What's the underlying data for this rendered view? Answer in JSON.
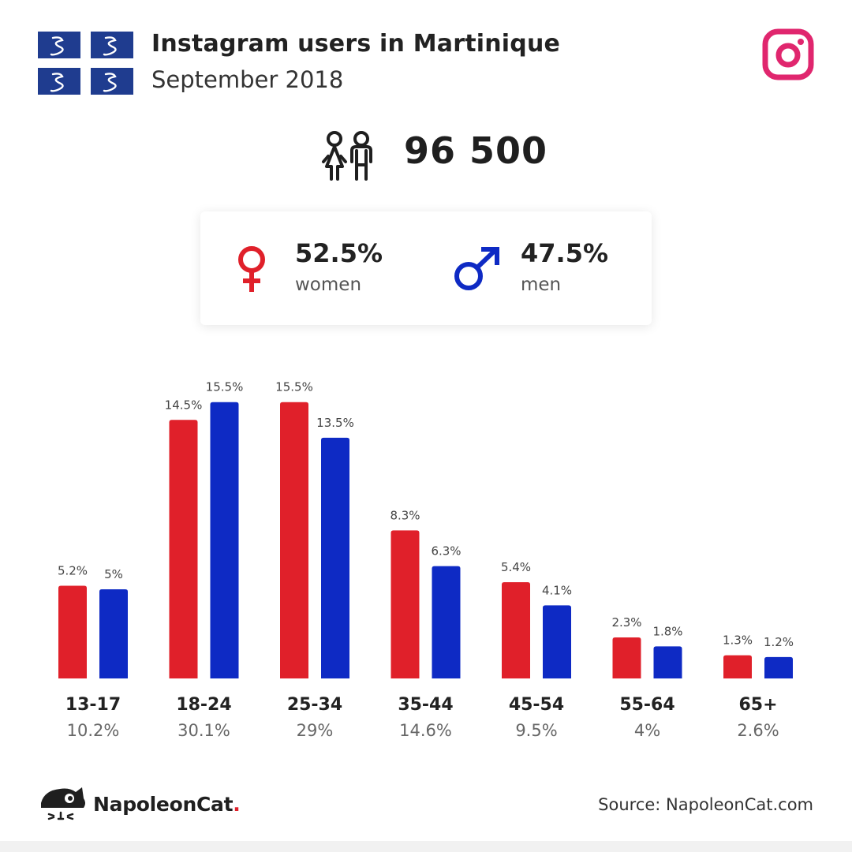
{
  "header": {
    "title": "Instagram users in Martinique",
    "subtitle": "September 2018"
  },
  "icons": {
    "flag": "martinique-flag-icon",
    "instagram": "instagram-icon",
    "people": "people-icon",
    "female": "female-symbol-icon",
    "male": "male-symbol-icon",
    "logo": "napoleoncat-logo-icon"
  },
  "total_users": "96 500",
  "gender": {
    "women": {
      "pct": "52.5%",
      "label": "women"
    },
    "men": {
      "pct": "47.5%",
      "label": "men"
    }
  },
  "colors": {
    "women": "#e0202a",
    "men": "#0e2ac4",
    "instagram": "#e0266e",
    "flag_blue": "#1f3c8f"
  },
  "chart_data": {
    "type": "bar",
    "categories": [
      "13-17",
      "18-24",
      "25-34",
      "35-44",
      "45-54",
      "55-64",
      "65+"
    ],
    "category_totals": [
      "10.2%",
      "30.1%",
      "29%",
      "14.6%",
      "9.5%",
      "4%",
      "2.6%"
    ],
    "series": [
      {
        "name": "women",
        "values": [
          5.2,
          14.5,
          15.5,
          8.3,
          5.4,
          2.3,
          1.3
        ],
        "labels": [
          "5.2%",
          "14.5%",
          "15.5%",
          "8.3%",
          "5.4%",
          "2.3%",
          "1.3%"
        ]
      },
      {
        "name": "men",
        "values": [
          5,
          15.5,
          13.5,
          6.3,
          4.1,
          1.8,
          1.2
        ],
        "labels": [
          "5%",
          "15.5%",
          "13.5%",
          "6.3%",
          "4.1%",
          "1.8%",
          "1.2%"
        ]
      }
    ],
    "title": "",
    "xlabel": "",
    "ylabel": "",
    "grid": false,
    "legend": "none"
  },
  "footer": {
    "brand": "NapoleonCat",
    "brand_dot": ".",
    "source": "Source: NapoleonCat.com"
  }
}
